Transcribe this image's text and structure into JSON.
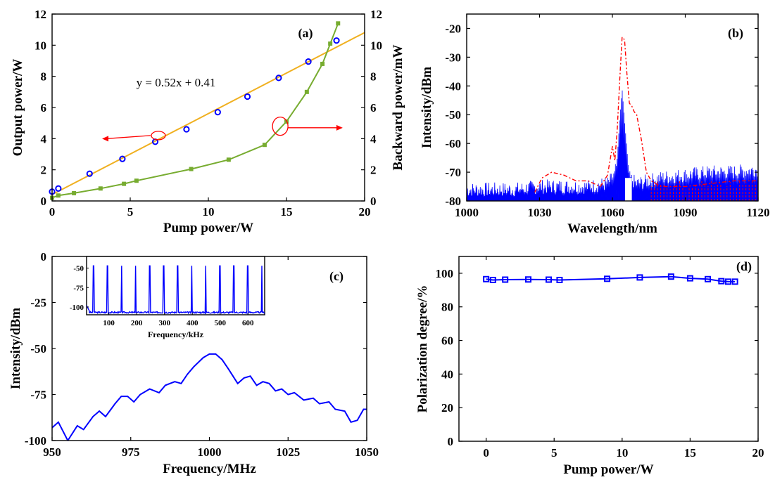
{
  "colors": {
    "blue": "#0000ff",
    "green": "#77ac30",
    "orange": "#f0b020",
    "red": "#ff0000",
    "black": "#000000"
  },
  "chart_data": [
    {
      "panel_label": "(a)",
      "type": "scatter+line",
      "xlabel": "Pump power/W",
      "ylabel_left": "Output power/W",
      "ylabel_right": "Backward power/mW",
      "xlim": [
        0,
        20
      ],
      "ylim_left": [
        0,
        12
      ],
      "ylim_right": [
        0,
        12
      ],
      "xticks": [
        0,
        5,
        10,
        15,
        20
      ],
      "yticks_left": [
        0,
        2,
        4,
        6,
        8,
        10,
        12
      ],
      "yticks_right": [
        0,
        2,
        4,
        6,
        8,
        10,
        12
      ],
      "annotation": "y = 0.52x + 0.41",
      "fit_line": {
        "slope": 0.52,
        "intercept": 0.41,
        "x_range": [
          0,
          20
        ],
        "color": "#f0b020"
      },
      "series": [
        {
          "axis": "left",
          "marker": "circle",
          "color": "#0000ff",
          "x": [
            0,
            0.4,
            2.4,
            4.5,
            6.6,
            8.6,
            10.6,
            12.5,
            14.5,
            16.4,
            18.2
          ],
          "y": [
            0.6,
            0.8,
            1.75,
            2.7,
            3.8,
            4.6,
            5.7,
            6.7,
            7.9,
            8.95,
            10.3
          ]
        },
        {
          "axis": "right",
          "marker": "square",
          "color": "#77ac30",
          "x": [
            0,
            0.4,
            1.4,
            3.1,
            4.6,
            5.4,
            8.9,
            11.3,
            13.6,
            15.0,
            16.3,
            17.3,
            17.8,
            18.3
          ],
          "y": [
            0.2,
            0.35,
            0.5,
            0.8,
            1.1,
            1.3,
            2.05,
            2.65,
            3.6,
            5.1,
            7.0,
            8.8,
            10.1,
            11.4
          ]
        }
      ]
    },
    {
      "panel_label": "(b)",
      "type": "line",
      "xlabel": "Wavelength/nm",
      "ylabel": "Intensity/dBm",
      "xlim": [
        1000,
        1120
      ],
      "ylim": [
        -80,
        -15
      ],
      "xticks": [
        1000,
        1030,
        1060,
        1090,
        1120
      ],
      "yticks": [
        -80,
        -70,
        -60,
        -50,
        -40,
        -30,
        -20
      ],
      "series": [
        {
          "style": "dash-dot",
          "color": "#ff0000",
          "x": [
            1028,
            1031,
            1035,
            1040,
            1045,
            1050,
            1055,
            1058,
            1060,
            1061,
            1062,
            1063,
            1064,
            1065,
            1066,
            1067,
            1068,
            1069,
            1070,
            1072,
            1074,
            1076,
            1080,
            1090,
            1100,
            1110,
            1120
          ],
          "y": [
            -77,
            -72,
            -70,
            -71,
            -73,
            -73,
            -75,
            -71,
            -61,
            -66,
            -55,
            -38,
            -23,
            -24,
            -36,
            -46,
            -47,
            -49,
            -50,
            -59,
            -70,
            -73,
            -75,
            -75,
            -74,
            -73,
            -73
          ]
        },
        {
          "style": "solid",
          "color": "#0000ff",
          "x": [
            1000,
            1010,
            1020,
            1030,
            1040,
            1050,
            1058,
            1061,
            1062,
            1063,
            1064,
            1065,
            1066,
            1067,
            1070,
            1080,
            1090,
            1100,
            1110,
            1120
          ],
          "y": [
            -77,
            -77,
            -77,
            -76,
            -76,
            -76,
            -75,
            -72,
            -65,
            -52,
            -41,
            -52,
            -62,
            -73,
            -75,
            -73,
            -72,
            -71,
            -71,
            -70
          ]
        }
      ]
    },
    {
      "panel_label": "(c)",
      "type": "line",
      "xlabel": "Frequency/MHz",
      "ylabel": "Intensity/dBm",
      "xlim": [
        950,
        1050
      ],
      "ylim": [
        -100,
        0
      ],
      "xticks": [
        950,
        975,
        1000,
        1025,
        1050
      ],
      "yticks": [
        -100,
        -75,
        -50,
        -25,
        0
      ],
      "series": [
        {
          "color": "#0000ff",
          "x": [
            950,
            952,
            955,
            958,
            960,
            963,
            965,
            967,
            970,
            972,
            974,
            976,
            978,
            981,
            984,
            986,
            989,
            991,
            993,
            995,
            998,
            1000,
            1002,
            1004,
            1006,
            1009,
            1011,
            1013,
            1015,
            1017,
            1019,
            1021,
            1023,
            1025,
            1027,
            1030,
            1033,
            1035,
            1038,
            1040,
            1043,
            1045,
            1047,
            1049,
            1050
          ],
          "y": [
            -93,
            -90,
            -100,
            -92,
            -94,
            -87,
            -84,
            -87,
            -80,
            -76,
            -76,
            -79,
            -75,
            -72,
            -74,
            -70,
            -68,
            -69,
            -64,
            -60,
            -55,
            -53,
            -53,
            -56,
            -61,
            -69,
            -66,
            -65,
            -70,
            -68,
            -69,
            -73,
            -72,
            -75,
            -74,
            -78,
            -77,
            -80,
            -79,
            -83,
            -84,
            -90,
            -89,
            -83,
            -83
          ]
        }
      ],
      "inset": {
        "xlabel": "Frequency/kHz",
        "xlim": [
          20,
          660
        ],
        "ylim": [
          -110,
          -35
        ],
        "xticks": [
          100,
          200,
          300,
          400,
          500,
          600
        ],
        "yticks": [
          -100,
          -75,
          -50
        ],
        "peak_spacing_khz": 50.4,
        "first_peak_khz": 45,
        "peak_level_dbm": -47,
        "baseline_dbm": -107
      }
    },
    {
      "panel_label": "(d)",
      "type": "line",
      "xlabel": "Pump power/W",
      "ylabel": "Polarization degree/%",
      "xlim": [
        -2,
        20
      ],
      "ylim": [
        0,
        110
      ],
      "xticks": [
        0,
        5,
        10,
        15,
        20
      ],
      "yticks": [
        0,
        20,
        40,
        60,
        80,
        100
      ],
      "series": [
        {
          "marker": "square",
          "color": "#0000ff",
          "x": [
            0,
            0.5,
            1.4,
            3.1,
            4.6,
            5.4,
            8.9,
            11.3,
            13.6,
            15.0,
            16.3,
            17.3,
            17.8,
            18.3
          ],
          "y": [
            96.5,
            96,
            96.2,
            96.3,
            96.2,
            96,
            96.7,
            97.5,
            98,
            97,
            96.5,
            95.3,
            95,
            95
          ]
        }
      ]
    }
  ]
}
